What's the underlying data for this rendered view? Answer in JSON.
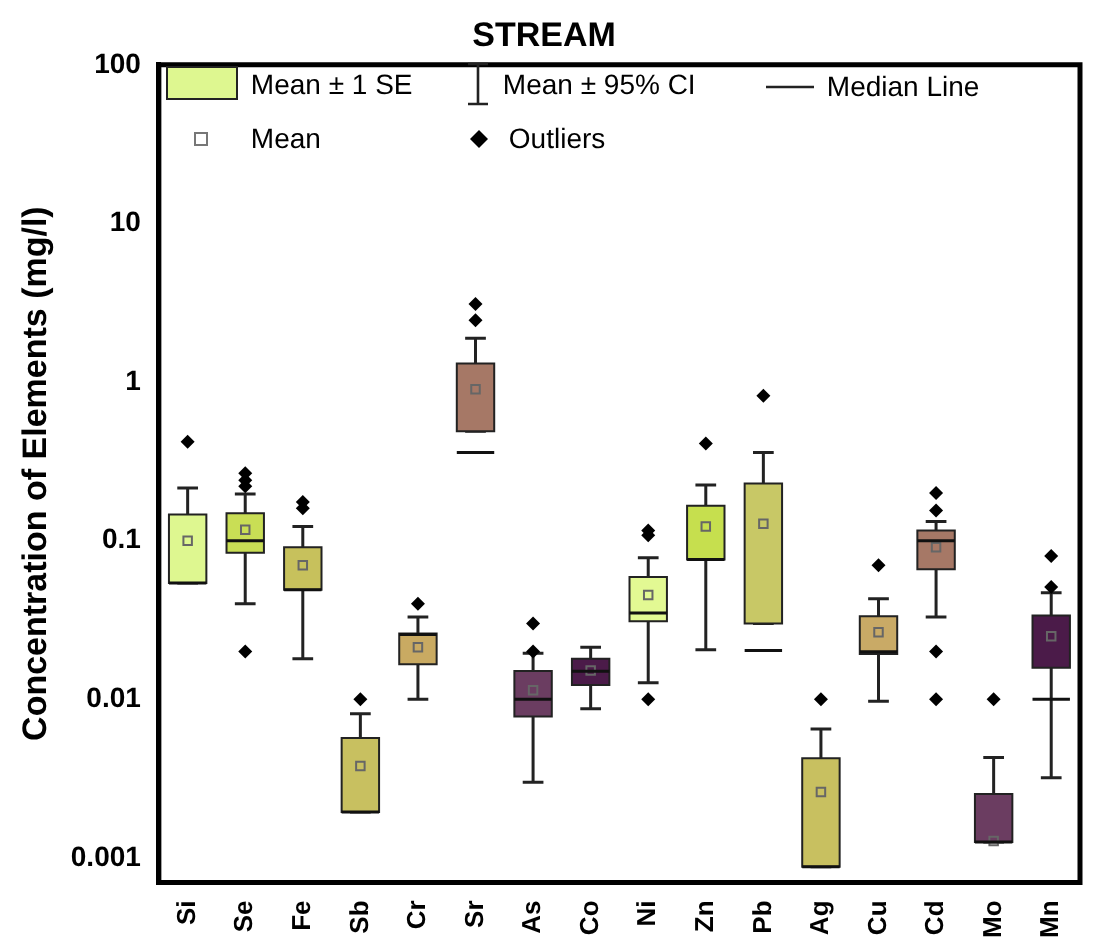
{
  "chart_data": {
    "type": "box",
    "title": "STREAM",
    "ylabel": "Concentration of Elements (mg/l)",
    "categories": [
      "Si",
      "Se",
      "Fe",
      "Sb",
      "Cr",
      "Sr",
      "As",
      "Co",
      "Ni",
      "Zn",
      "Pb",
      "Ag",
      "Cu",
      "Cd",
      "Mo",
      "Mn"
    ],
    "colors": [
      "#def790",
      "#c9de55",
      "#c7c15c",
      "#c8c060",
      "#c9aa62",
      "#a67866",
      "#6b3d61",
      "#4b1b49",
      "#e2f993",
      "#c6df4e",
      "#c8c866",
      "#c8c060",
      "#c9aa66",
      "#a67866",
      "#6b3d61",
      "#4b1b49"
    ],
    "boxes": [
      {
        "low": 0.054,
        "q1": 0.054,
        "median": 0.054,
        "q3": 0.146,
        "high": 0.215,
        "mean": 0.1,
        "outliers": [
          0.42
        ]
      },
      {
        "low": 0.04,
        "q1": 0.084,
        "median": 0.1,
        "q3": 0.149,
        "high": 0.197,
        "mean": 0.117,
        "outliers": [
          0.266,
          0.24,
          0.22,
          0.02
        ]
      },
      {
        "low": 0.018,
        "q1": 0.049,
        "median": 0.049,
        "q3": 0.091,
        "high": 0.123,
        "mean": 0.07,
        "outliers": [
          0.175,
          0.16
        ]
      },
      {
        "low": 0.00195,
        "q1": 0.00195,
        "median": 0.00195,
        "q3": 0.0057,
        "high": 0.0081,
        "mean": 0.0038,
        "outliers": [
          0.01
        ]
      },
      {
        "low": 0.01,
        "q1": 0.0166,
        "median": 0.0256,
        "q3": 0.026,
        "high": 0.033,
        "mean": 0.0213,
        "outliers": [
          0.04
        ]
      },
      {
        "low": 0.49,
        "q1": 0.49,
        "median": 0.36,
        "q3": 1.31,
        "high": 1.89,
        "mean": 0.9,
        "outliers": [
          3.1,
          2.45
        ]
      },
      {
        "low": 0.003,
        "q1": 0.0078,
        "median": 0.01,
        "q3": 0.0151,
        "high": 0.0195,
        "mean": 0.0114,
        "outliers": [
          0.03,
          0.02
        ]
      },
      {
        "low": 0.0087,
        "q1": 0.0123,
        "median": 0.015,
        "q3": 0.018,
        "high": 0.0213,
        "mean": 0.0152
      },
      {
        "low": 0.0127,
        "q1": 0.031,
        "median": 0.035,
        "q3": 0.059,
        "high": 0.078,
        "mean": 0.0455,
        "outliers": [
          0.116,
          0.108,
          0.01
        ]
      },
      {
        "low": 0.0205,
        "q1": 0.076,
        "median": 0.076,
        "q3": 0.166,
        "high": 0.224,
        "mean": 0.123,
        "outliers": [
          0.41
        ]
      },
      {
        "low": 0.03,
        "q1": 0.03,
        "median": 0.0203,
        "q3": 0.229,
        "high": 0.36,
        "mean": 0.128,
        "outliers": [
          0.82
        ]
      },
      {
        "low": 0.00088,
        "q1": 0.00088,
        "median": 0.00088,
        "q3": 0.00425,
        "high": 0.0065,
        "mean": 0.0026,
        "outliers": [
          0.01
        ]
      },
      {
        "low": 0.0097,
        "q1": 0.0193,
        "median": 0.0199,
        "q3": 0.0334,
        "high": 0.043,
        "mean": 0.0265,
        "outliers": [
          0.07
        ]
      },
      {
        "low": 0.033,
        "q1": 0.066,
        "median": 0.1,
        "q3": 0.116,
        "high": 0.132,
        "mean": 0.091,
        "outliers": [
          0.2,
          0.155,
          0.02,
          0.01
        ]
      },
      {
        "low": 0.00126,
        "q1": 0.00126,
        "median": 0.00126,
        "q3": 0.00253,
        "high": 0.0043,
        "mean": 0.00128,
        "outliers": [
          0.01
        ]
      },
      {
        "low": 0.0032,
        "q1": 0.0158,
        "median": 0.01,
        "q3": 0.0337,
        "high": 0.047,
        "mean": 0.025,
        "outliers": [
          0.08,
          0.051
        ]
      }
    ],
    "ylim": [
      0.0007,
      100
    ],
    "yticks": [
      0.001,
      0.01,
      0.1,
      1,
      10,
      100
    ],
    "log": true,
    "annotations": [
      "Mean ± 1 SE",
      "Mean ± 95% CI",
      "Median Line",
      "Mean",
      "Outliers"
    ]
  }
}
